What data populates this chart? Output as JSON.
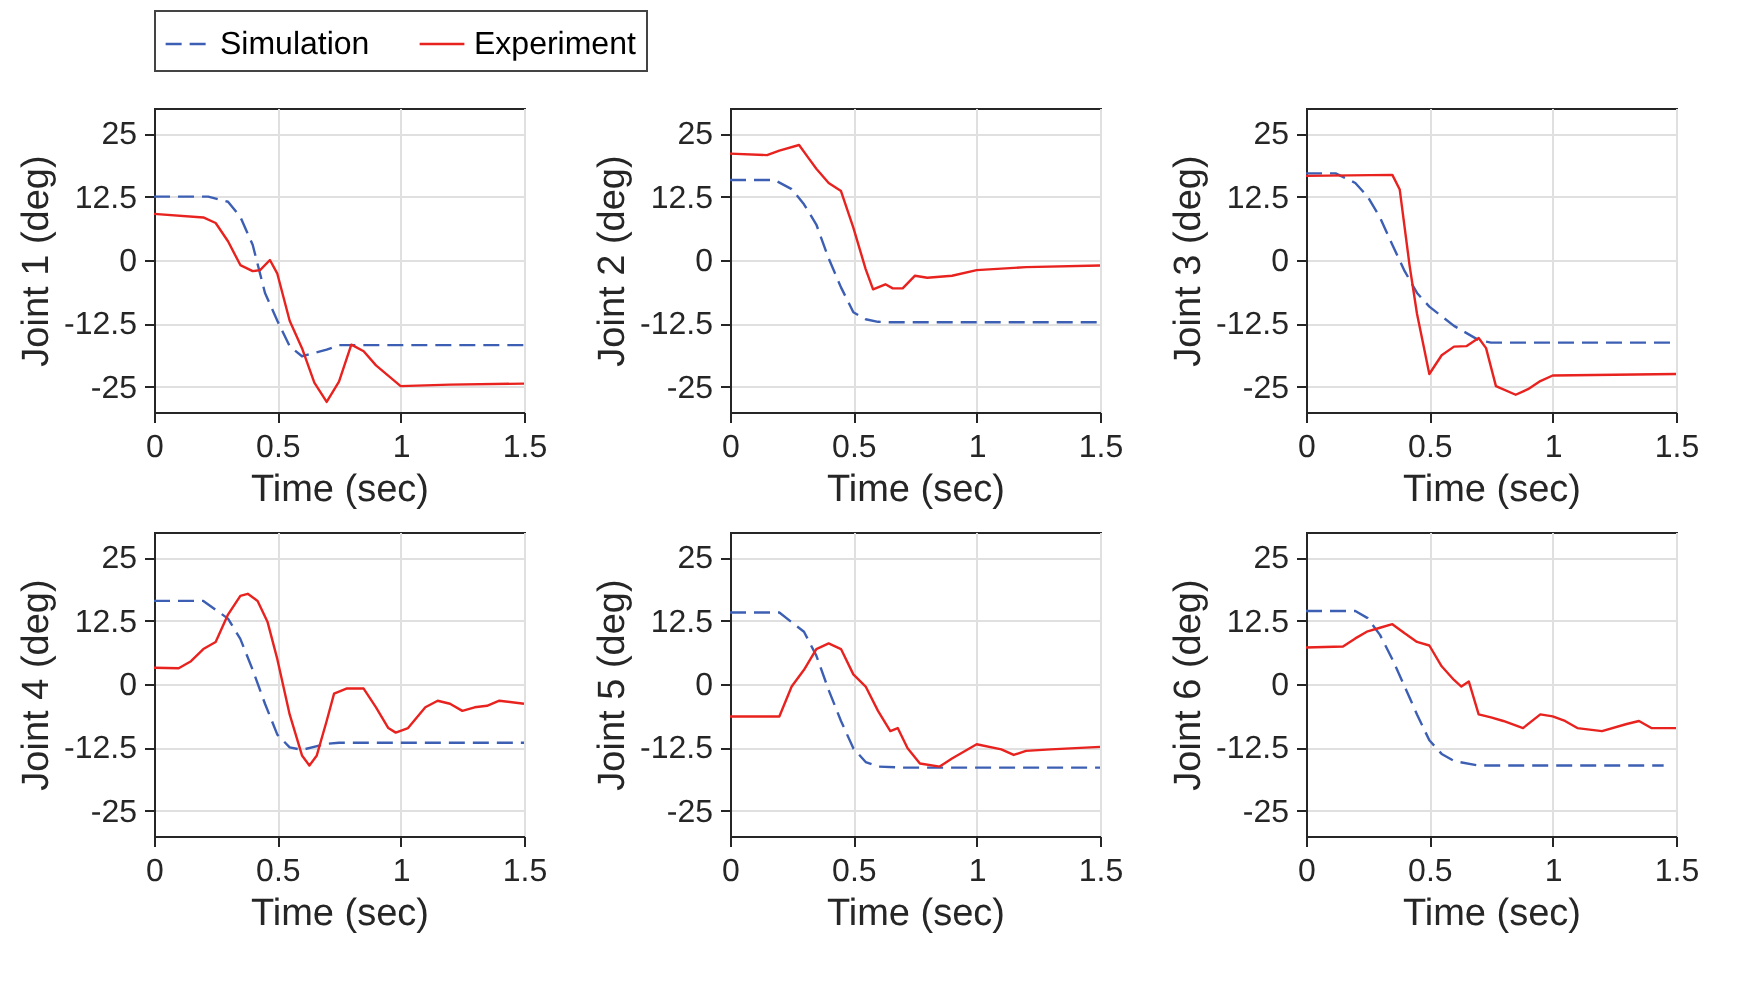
{
  "chart_data": [
    {
      "type": "line",
      "xlabel": "Time (sec)",
      "ylabel": "Joint 1 (deg)",
      "xlim": [
        0,
        1.5
      ],
      "xticks": [
        0,
        0.5,
        1,
        1.5
      ],
      "ylim": [
        -30,
        30
      ],
      "yticks": [
        -25,
        -12.5,
        0,
        12.5,
        25
      ],
      "grid": true,
      "legend": "top",
      "series": [
        {
          "name": "Simulation",
          "color": "#3c5fb4",
          "line_style": "dashed",
          "x": [
            0,
            0.22,
            0.3,
            0.35,
            0.4,
            0.45,
            0.5,
            0.55,
            0.6,
            0.7,
            0.75,
            1.5
          ],
          "values": [
            12.5,
            12.5,
            11.5,
            8.5,
            3,
            -6.5,
            -12,
            -17,
            -19,
            -17.7,
            -16.8,
            -16.8
          ]
        },
        {
          "name": "Experiment",
          "color": "#e8221e",
          "line_style": "solid",
          "x": [
            0,
            0.2,
            0.25,
            0.3,
            0.35,
            0.4,
            0.43,
            0.47,
            0.5,
            0.55,
            0.6,
            0.65,
            0.7,
            0.75,
            0.8,
            0.85,
            0.9,
            1.0,
            1.2,
            1.5
          ],
          "values": [
            9.1,
            8.4,
            7.3,
            3.7,
            -1,
            -2.2,
            -2,
            0,
            -2.7,
            -12,
            -17.4,
            -24.2,
            -28,
            -24,
            -16.7,
            -18,
            -20.8,
            -24.9,
            -24.6,
            -24.4
          ]
        }
      ]
    },
    {
      "type": "line",
      "xlabel": "Time (sec)",
      "ylabel": "Joint 2 (deg)",
      "xlim": [
        0,
        1.5
      ],
      "xticks": [
        0,
        0.5,
        1,
        1.5
      ],
      "ylim": [
        -30,
        30
      ],
      "yticks": [
        -25,
        -12.5,
        0,
        12.5,
        25
      ],
      "grid": true,
      "series": [
        {
          "name": "Simulation",
          "color": "#3c5fb4",
          "line_style": "dashed",
          "x": [
            0,
            0.18,
            0.25,
            0.3,
            0.35,
            0.4,
            0.45,
            0.5,
            0.55,
            0.6,
            0.65,
            1.5
          ],
          "values": [
            15.8,
            15.8,
            14,
            11,
            7,
            0.3,
            -5.4,
            -10.3,
            -11.7,
            -12.2,
            -12.3,
            -12.3
          ]
        },
        {
          "name": "Experiment",
          "color": "#e8221e",
          "line_style": "solid",
          "x": [
            0,
            0.15,
            0.2,
            0.28,
            0.32,
            0.35,
            0.4,
            0.45,
            0.5,
            0.55,
            0.58,
            0.63,
            0.66,
            0.7,
            0.75,
            0.8,
            0.9,
            1.0,
            1.2,
            1.5
          ],
          "values": [
            21,
            20.7,
            21.6,
            22.7,
            20,
            18,
            15.2,
            13.6,
            6.4,
            -1.8,
            -5.8,
            -4.8,
            -5.6,
            -5.6,
            -3.1,
            -3.5,
            -3.1,
            -2,
            -1.4,
            -1.1
          ]
        }
      ]
    },
    {
      "type": "line",
      "xlabel": "Time (sec)",
      "ylabel": "Joint 3 (deg)",
      "xlim": [
        0,
        1.5
      ],
      "xticks": [
        0,
        0.5,
        1,
        1.5
      ],
      "ylim": [
        -30,
        30
      ],
      "yticks": [
        -25,
        -12.5,
        0,
        12.5,
        25
      ],
      "grid": true,
      "series": [
        {
          "name": "Simulation",
          "color": "#3c5fb4",
          "line_style": "dashed",
          "x": [
            0,
            0.12,
            0.2,
            0.25,
            0.3,
            0.35,
            0.4,
            0.45,
            0.5,
            0.6,
            0.7,
            0.75,
            1.5
          ],
          "values": [
            17.1,
            17.1,
            15.2,
            12.5,
            8.4,
            3,
            -2.2,
            -6.5,
            -9.2,
            -13,
            -15.8,
            -16.3,
            -16.3
          ]
        },
        {
          "name": "Experiment",
          "color": "#e8221e",
          "line_style": "solid",
          "x": [
            0,
            0.35,
            0.38,
            0.42,
            0.45,
            0.5,
            0.55,
            0.6,
            0.65,
            0.7,
            0.73,
            0.77,
            0.85,
            0.9,
            0.95,
            1.0,
            1.5
          ],
          "values": [
            16.6,
            16.8,
            13.9,
            -1.1,
            -10.6,
            -22.5,
            -18.8,
            -17.1,
            -17,
            -15.4,
            -17.4,
            -24.9,
            -26.6,
            -25.5,
            -23.9,
            -22.8,
            -22.5
          ]
        }
      ]
    },
    {
      "type": "line",
      "xlabel": "Time (sec)",
      "ylabel": "Joint 4 (deg)",
      "xlim": [
        0,
        1.5
      ],
      "xticks": [
        0,
        0.5,
        1,
        1.5
      ],
      "ylim": [
        -30,
        30
      ],
      "yticks": [
        -25,
        -12.5,
        0,
        12.5,
        25
      ],
      "grid": true,
      "series": [
        {
          "name": "Simulation",
          "color": "#3c5fb4",
          "line_style": "dashed",
          "x": [
            0,
            0.2,
            0.3,
            0.35,
            0.4,
            0.45,
            0.5,
            0.55,
            0.6,
            0.7,
            0.75,
            1.5
          ],
          "values": [
            16.4,
            16.4,
            12.9,
            8.9,
            2.8,
            -3.9,
            -10,
            -12.5,
            -13,
            -11.8,
            -11.6,
            -11.6
          ]
        },
        {
          "name": "Experiment",
          "color": "#e8221e",
          "line_style": "solid",
          "x": [
            0,
            0.1,
            0.15,
            0.2,
            0.25,
            0.3,
            0.35,
            0.38,
            0.42,
            0.46,
            0.5,
            0.55,
            0.6,
            0.63,
            0.66,
            0.7,
            0.73,
            0.78,
            0.85,
            0.9,
            0.95,
            0.98,
            1.03,
            1.1,
            1.15,
            1.2,
            1.25,
            1.3,
            1.35,
            1.4,
            1.5
          ],
          "values": [
            3.2,
            3.1,
            4.5,
            6.9,
            8.3,
            13.7,
            17.4,
            17.8,
            16.4,
            12.3,
            4.9,
            -6,
            -14.1,
            -16.1,
            -14.1,
            -7.3,
            -1.9,
            -0.9,
            -0.9,
            -4.6,
            -8.7,
            -9.6,
            -8.7,
            -4.6,
            -3.3,
            -3.9,
            -5.3,
            -4.6,
            -4.3,
            -3.3,
            -3.9
          ]
        }
      ]
    },
    {
      "type": "line",
      "xlabel": "Time (sec)",
      "ylabel": "Joint 5 (deg)",
      "xlim": [
        0,
        1.5
      ],
      "xticks": [
        0,
        0.5,
        1,
        1.5
      ],
      "ylim": [
        -30,
        30
      ],
      "yticks": [
        -25,
        -12.5,
        0,
        12.5,
        25
      ],
      "grid": true,
      "series": [
        {
          "name": "Simulation",
          "color": "#3c5fb4",
          "line_style": "dashed",
          "x": [
            0,
            0.2,
            0.3,
            0.35,
            0.4,
            0.45,
            0.5,
            0.55,
            0.6,
            0.7,
            1.5
          ],
          "values": [
            14.1,
            14.1,
            10.3,
            5.6,
            -1.2,
            -7.3,
            -12.7,
            -15.4,
            -16.3,
            -16.5,
            -16.5
          ]
        },
        {
          "name": "Experiment",
          "color": "#e8221e",
          "line_style": "solid",
          "x": [
            0,
            0.2,
            0.25,
            0.3,
            0.35,
            0.4,
            0.45,
            0.5,
            0.55,
            0.6,
            0.65,
            0.68,
            0.72,
            0.77,
            0.85,
            0.9,
            1.0,
            1.1,
            1.15,
            1.2,
            1.3,
            1.5
          ],
          "values": [
            -6.4,
            -6.4,
            -0.5,
            2.8,
            6.9,
            8,
            6.9,
            1.9,
            -0.5,
            -5.3,
            -9.3,
            -8.7,
            -12.7,
            -15.7,
            -16.3,
            -14.7,
            -11.9,
            -12.9,
            -14,
            -13.2,
            -12.9,
            -12.4
          ]
        }
      ]
    },
    {
      "type": "line",
      "xlabel": "Time (sec)",
      "ylabel": "Joint 6 (deg)",
      "xlim": [
        0,
        1.5
      ],
      "xticks": [
        0,
        0.5,
        1,
        1.5
      ],
      "ylim": [
        -30,
        30
      ],
      "yticks": [
        -25,
        -12.5,
        0,
        12.5,
        25
      ],
      "grid": true,
      "series": [
        {
          "name": "Simulation",
          "color": "#3c5fb4",
          "line_style": "dashed",
          "x": [
            0,
            0.2,
            0.25,
            0.3,
            0.35,
            0.4,
            0.45,
            0.5,
            0.55,
            0.6,
            0.7,
            1.45
          ],
          "values": [
            14.4,
            14.4,
            13,
            9.7,
            4.9,
            -0.5,
            -6,
            -11.1,
            -13.8,
            -15.2,
            -16.1,
            -16.1
          ]
        },
        {
          "name": "Experiment",
          "color": "#e8221e",
          "line_style": "solid",
          "x": [
            0,
            0.15,
            0.2,
            0.25,
            0.3,
            0.35,
            0.4,
            0.45,
            0.5,
            0.55,
            0.6,
            0.63,
            0.66,
            0.7,
            0.75,
            0.8,
            0.88,
            0.95,
            1.0,
            1.05,
            1.1,
            1.2,
            1.3,
            1.35,
            1.4,
            1.5
          ],
          "values": [
            7.2,
            7.4,
            9,
            10.4,
            11.1,
            11.8,
            10,
            8.3,
            7.6,
            3.5,
            0.8,
            -0.5,
            0.5,
            -6,
            -6.6,
            -7.3,
            -8.7,
            -6,
            -6.4,
            -7.3,
            -8.7,
            -9.3,
            -7.9,
            -7.3,
            -8.7,
            -8.7
          ]
        }
      ]
    }
  ]
}
